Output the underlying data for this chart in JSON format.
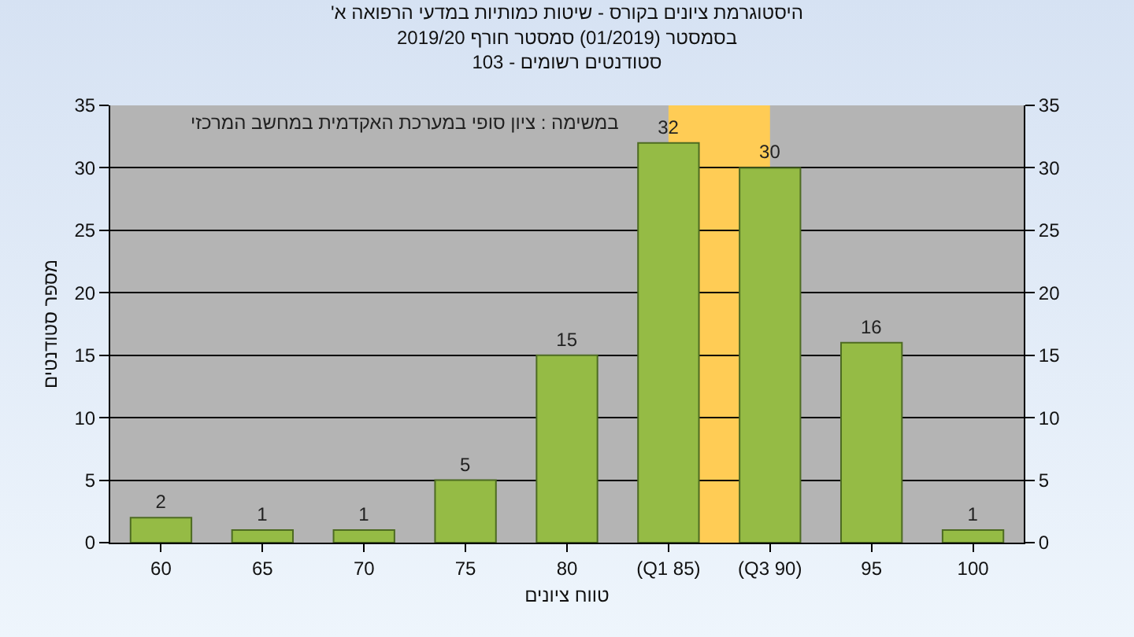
{
  "chart_data": {
    "type": "bar",
    "title": "'היסטוגרמת ציונים בקורס - שיטות כמותיות במדעי הרפואה א\nבסמסטר (01/2019) סמסטר חורף 2019/20\nסטודנטים רשומים - 103",
    "xlabel": "טווח ציונים",
    "ylabel": "מספר סטודנטים",
    "annotations": [
      "במשימה : ציון סופי במערכת האקדמית במחשב המרכזי"
    ],
    "categories": [
      "60",
      "65",
      "70",
      "75",
      "80",
      "(Q1 85)",
      "(Q3 90)",
      "95",
      "100"
    ],
    "values": [
      2,
      1,
      1,
      5,
      15,
      32,
      30,
      16,
      1
    ],
    "color": "#95bb45",
    "data_labels": true,
    "ylim": [
      0,
      35
    ],
    "yticks": [
      0,
      5,
      10,
      15,
      20,
      25,
      30,
      35
    ],
    "y2lim": [
      0,
      35
    ],
    "y2ticks": [
      0,
      5,
      10,
      15,
      20,
      25,
      30,
      35
    ],
    "bands": [
      {
        "axis": "x",
        "from": "(Q1 85)",
        "to": "(Q3 90)",
        "color": "#ffcc55"
      }
    ],
    "grid": "y"
  }
}
